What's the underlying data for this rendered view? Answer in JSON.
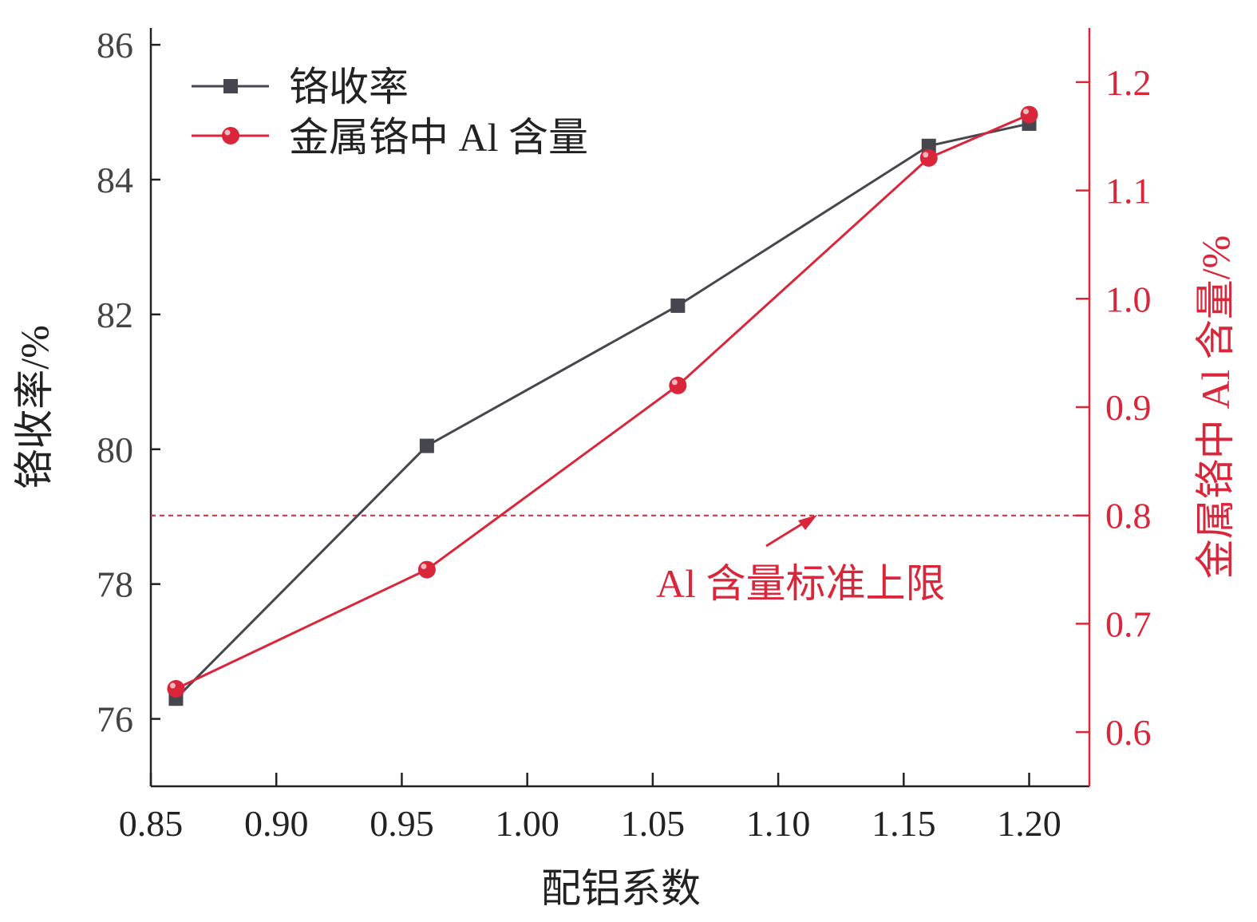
{
  "chart_data": {
    "type": "line",
    "xlabel": "配铝系数",
    "x": [
      0.86,
      0.96,
      1.06,
      1.16,
      1.2
    ],
    "xlim": [
      0.85,
      1.224
    ],
    "xticks": [
      "0.85",
      "0.90",
      "0.95",
      "1.00",
      "1.05",
      "1.10",
      "1.15",
      "1.20"
    ],
    "y_left": {
      "label": "铬收率/%",
      "lim": [
        75,
        86.25
      ],
      "ticks": [
        "76",
        "78",
        "80",
        "82",
        "84",
        "86"
      ]
    },
    "y_right": {
      "label": "金属铬中 Al 含量/%",
      "lim": [
        0.55,
        1.25
      ],
      "ticks": [
        "0.6",
        "0.7",
        "0.8",
        "0.9",
        "1.0",
        "1.1",
        "1.2"
      ]
    },
    "series": [
      {
        "name": "铬收率",
        "axis": "left",
        "marker": "square",
        "color": "#46464e",
        "values": [
          76.3,
          80.05,
          82.13,
          84.5,
          84.83
        ]
      },
      {
        "name": "金属铬中 Al 含量",
        "axis": "right",
        "marker": "circle",
        "color": "#d9263a",
        "values": [
          0.64,
          0.75,
          0.92,
          1.13,
          1.17
        ]
      }
    ],
    "reference_line": {
      "axis": "right",
      "value": 0.8,
      "style": "dashed",
      "color": "#d9263a",
      "annotation": "Al 含量标准上限"
    },
    "legend": "top-left",
    "grid": false
  }
}
